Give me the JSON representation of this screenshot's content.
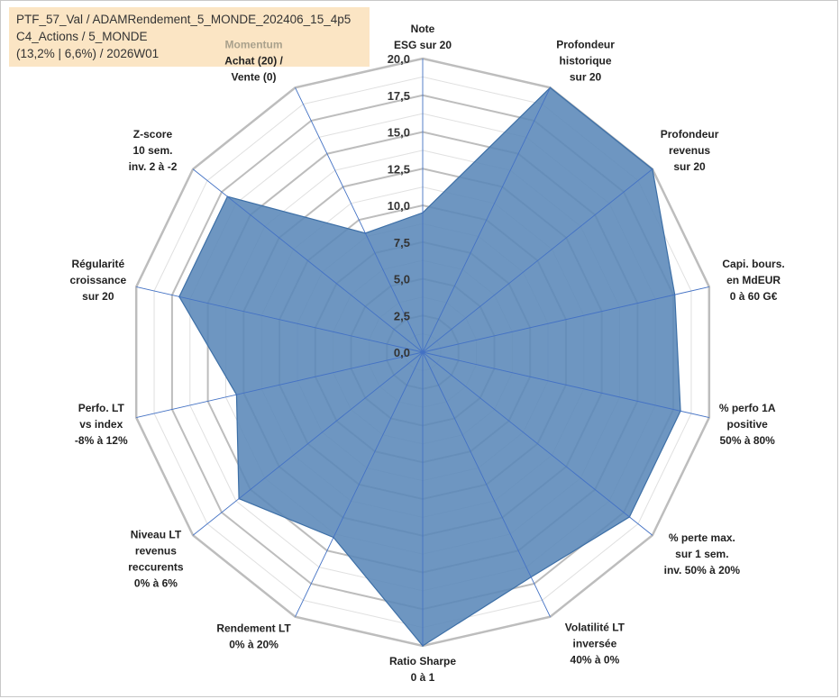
{
  "header": {
    "line1": "PTF_57_Val / ADAMRendement_5_MONDE_202406_15_4p5",
    "line2": "C4_Actions / 5_MONDE",
    "line3": "(13,2% | 6,6%) / 2026W01"
  },
  "colors": {
    "fill": "#5a88b8",
    "stroke": "#3d6fa6",
    "grid_major": "#bdbdbd",
    "grid_minor": "#e0e0e0",
    "spoke": "#4472c4",
    "accent_label": "#a9a18c"
  },
  "chart_data": {
    "type": "radar",
    "title": "",
    "rmin": 0,
    "rmax": 20,
    "ticks": [
      "0,0",
      "2,5",
      "5,0",
      "7,5",
      "10,0",
      "12,5",
      "15,0",
      "17,5",
      "20,0"
    ],
    "axes": [
      {
        "lines": [
          "Note",
          "ESG sur 20"
        ]
      },
      {
        "lines": [
          "Profondeur",
          "historique",
          "sur 20"
        ]
      },
      {
        "lines": [
          "Profondeur",
          "revenus",
          "sur 20"
        ]
      },
      {
        "lines": [
          "Capi. bours.",
          "en MdEUR",
          "0 à 60 G€"
        ]
      },
      {
        "lines": [
          "% perfo 1A",
          "positive",
          "50% à 80%"
        ]
      },
      {
        "lines": [
          "% perte max.",
          "sur 1 sem.",
          "inv. 50% à 20%"
        ]
      },
      {
        "lines": [
          "Volatilité LT",
          "inversée",
          "40% à 0%"
        ]
      },
      {
        "lines": [
          "Ratio Sharpe",
          "0 à 1"
        ]
      },
      {
        "lines": [
          "Rendement LT",
          "0% à 20%"
        ]
      },
      {
        "lines": [
          "Niveau LT",
          "revenus",
          "reccurents",
          "0% à 6%"
        ]
      },
      {
        "lines": [
          "Perfo. LT",
          "vs index",
          "-8% à 12%"
        ]
      },
      {
        "lines": [
          "Régularité",
          "croissance",
          "sur 20"
        ]
      },
      {
        "lines": [
          "Z-score",
          "10 sem.",
          "inv. 2 à -2"
        ]
      },
      {
        "lines": [
          "Momentum",
          "Achat (20) /",
          "Vente (0)"
        ],
        "accent_first": true
      }
    ],
    "series": [
      {
        "name": "PTF_57_Val",
        "values": [
          9.5,
          20,
          20,
          17.6,
          18,
          18,
          17,
          20,
          14,
          16,
          13,
          17,
          17,
          9
        ]
      }
    ]
  }
}
